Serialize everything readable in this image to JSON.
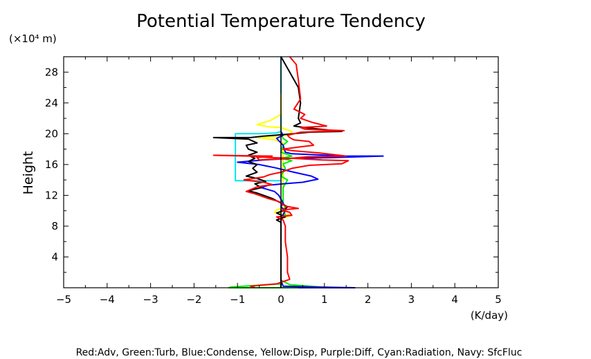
{
  "chart_data": {
    "type": "line",
    "title": "Potential Temperature Tendency",
    "ylabel": "Height",
    "y_unit_label": "(×10⁴ m)",
    "x_unit_label": "(K/day)",
    "xlim": [
      -5,
      5
    ],
    "ylim": [
      0,
      30
    ],
    "x_ticks": [
      -5,
      -4,
      -3,
      -2,
      -1,
      0,
      1,
      2,
      3,
      4,
      5
    ],
    "x_tick_labels": [
      "−5",
      "−4",
      "−3",
      "−2",
      "−1",
      "0",
      "1",
      "2",
      "3",
      "4",
      "5"
    ],
    "y_ticks": [
      4,
      8,
      12,
      16,
      20,
      24,
      28
    ],
    "y_tick_labels": [
      "4",
      "8",
      "12",
      "16",
      "20",
      "24",
      "28"
    ],
    "grid": false,
    "legend_caption": "Red:Adv, Green:Turb, Blue:Condense, Yellow:Disp, Purple:Diff, Cyan:Radiation, Navy: SfcFluc",
    "series": [
      {
        "name": "Cyan",
        "color": "#00e5ee",
        "points": [
          [
            -1.05,
            13.9
          ],
          [
            -1.05,
            16
          ],
          [
            -1.05,
            18
          ],
          [
            -1.05,
            20
          ],
          [
            -0.5,
            20
          ],
          [
            -0.1,
            20.1
          ],
          [
            0,
            20.3
          ],
          [
            0,
            30
          ],
          [
            0,
            20.3
          ],
          [
            -0.1,
            20.1
          ],
          [
            -0.5,
            20
          ],
          [
            -1.05,
            20
          ],
          [
            -1.05,
            13.9
          ],
          [
            -0.7,
            13.9
          ],
          [
            -0.2,
            13.9
          ],
          [
            0,
            13.9
          ]
        ]
      },
      {
        "name": "Yellow",
        "color": "#ffff00",
        "points": [
          [
            0,
            25.2
          ],
          [
            0,
            22.5
          ],
          [
            -0.25,
            21.7
          ],
          [
            -0.55,
            21.2
          ],
          [
            -0.3,
            20.9
          ],
          [
            0,
            20.8
          ],
          [
            0.25,
            20.3
          ],
          [
            0.2,
            19.9
          ],
          [
            -0.05,
            19.7
          ],
          [
            -0.55,
            19.5
          ],
          [
            -0.15,
            19.2
          ],
          [
            0.05,
            18.8
          ],
          [
            0.05,
            17
          ],
          [
            0.05,
            14
          ],
          [
            0.05,
            11
          ],
          [
            0.1,
            10.5
          ],
          [
            -0.1,
            10.1
          ],
          [
            -0.15,
            9.8
          ],
          [
            0.05,
            9.6
          ],
          [
            0.25,
            9.4
          ],
          [
            0.05,
            9.1
          ],
          [
            0,
            8.7
          ],
          [
            0,
            4
          ],
          [
            0,
            0
          ]
        ]
      },
      {
        "name": "Green",
        "color": "#00ee00",
        "points": [
          [
            0,
            20
          ],
          [
            0.05,
            19.4
          ],
          [
            0.15,
            19
          ],
          [
            0.05,
            18.5
          ],
          [
            0,
            17.6
          ],
          [
            0.25,
            17.1
          ],
          [
            0,
            16.8
          ],
          [
            0.25,
            16.5
          ],
          [
            0.05,
            16.1
          ],
          [
            0.1,
            15.5
          ],
          [
            0,
            14.5
          ],
          [
            0.15,
            14
          ],
          [
            0.05,
            13
          ],
          [
            0.05,
            12
          ],
          [
            0.05,
            11
          ],
          [
            0.1,
            10.5
          ],
          [
            0.05,
            10
          ],
          [
            0.1,
            9.5
          ],
          [
            0,
            9
          ],
          [
            0,
            1
          ],
          [
            0.2,
            0.4
          ],
          [
            0.9,
            0.1
          ],
          [
            1,
            0
          ],
          [
            -1.2,
            0
          ],
          [
            -1.15,
            0.1
          ],
          [
            0,
            0.5
          ]
        ]
      },
      {
        "name": "Blue",
        "color": "#0000ff",
        "points": [
          [
            0,
            20.3
          ],
          [
            0.05,
            19.8
          ],
          [
            -0.1,
            19.4
          ],
          [
            0.05,
            18.5
          ],
          [
            0.1,
            17.6
          ],
          [
            0.25,
            17.4
          ],
          [
            1.5,
            17.1
          ],
          [
            2.35,
            17.1
          ],
          [
            1.2,
            16.9
          ],
          [
            0.25,
            16.8
          ],
          [
            -0.4,
            16.6
          ],
          [
            -1,
            16.3
          ],
          [
            -0.5,
            16
          ],
          [
            -0.15,
            15.6
          ],
          [
            0.3,
            15
          ],
          [
            0.7,
            14.5
          ],
          [
            0.85,
            14.1
          ],
          [
            0.5,
            13.7
          ],
          [
            0.05,
            13.5
          ],
          [
            -0.3,
            13.3
          ],
          [
            -0.45,
            13
          ],
          [
            -0.15,
            12.5
          ],
          [
            -0.05,
            12
          ],
          [
            0,
            11.5
          ],
          [
            0.05,
            11
          ],
          [
            0,
            10.5
          ],
          [
            0.1,
            10
          ],
          [
            0.05,
            9.5
          ],
          [
            0,
            9
          ],
          [
            0,
            1
          ],
          [
            0.05,
            0.2
          ],
          [
            0.8,
            0.1
          ],
          [
            1.7,
            0
          ],
          [
            0.4,
            0
          ]
        ]
      },
      {
        "name": "Black",
        "color": "#000000",
        "points": [
          [
            0,
            30
          ],
          [
            0.2,
            28
          ],
          [
            0.4,
            26
          ],
          [
            0.45,
            24
          ],
          [
            0.4,
            22
          ],
          [
            0.45,
            21.4
          ],
          [
            0.3,
            21
          ],
          [
            0.55,
            20.8
          ],
          [
            1.4,
            20.3
          ],
          [
            0.65,
            20.2
          ],
          [
            0.3,
            20
          ],
          [
            0.1,
            19.9
          ],
          [
            -0.4,
            19.7
          ],
          [
            -0.7,
            19.5
          ],
          [
            -1.55,
            19.5
          ],
          [
            -0.75,
            19.3
          ],
          [
            -0.55,
            18.8
          ],
          [
            -0.8,
            18.5
          ],
          [
            -0.75,
            18
          ],
          [
            -0.55,
            17.6
          ],
          [
            -0.75,
            17.2
          ],
          [
            -0.6,
            16.8
          ],
          [
            -0.75,
            16.4
          ],
          [
            -0.55,
            16
          ],
          [
            -0.65,
            15.5
          ],
          [
            -0.55,
            15
          ],
          [
            -0.8,
            14.5
          ],
          [
            -0.55,
            14.2
          ],
          [
            -0.35,
            13.8
          ],
          [
            -0.6,
            13.5
          ],
          [
            -0.45,
            13
          ],
          [
            -0.75,
            12.6
          ],
          [
            -0.55,
            12.3
          ],
          [
            -0.4,
            12
          ],
          [
            -0.2,
            11.6
          ],
          [
            0,
            11
          ],
          [
            0.15,
            10.5
          ],
          [
            0.05,
            10
          ],
          [
            -0.1,
            9.7
          ],
          [
            0.1,
            9.2
          ],
          [
            -0.1,
            8.8
          ],
          [
            0,
            8.5
          ],
          [
            0,
            4
          ],
          [
            0,
            1
          ],
          [
            0,
            0
          ]
        ]
      },
      {
        "name": "Red",
        "color": "#ff0000",
        "points": [
          [
            0.2,
            30
          ],
          [
            0.35,
            29
          ],
          [
            0.4,
            27
          ],
          [
            0.45,
            24.5
          ],
          [
            0.3,
            23.2
          ],
          [
            0.55,
            22.5
          ],
          [
            0.45,
            22
          ],
          [
            0.7,
            21.5
          ],
          [
            1.05,
            21
          ],
          [
            0.45,
            20.8
          ],
          [
            0.55,
            20.6
          ],
          [
            1.45,
            20.4
          ],
          [
            0.45,
            20.2
          ],
          [
            0.15,
            19.8
          ],
          [
            0.2,
            19.5
          ],
          [
            0.3,
            19.2
          ],
          [
            0.65,
            19
          ],
          [
            0.75,
            18.5
          ],
          [
            0.45,
            18.3
          ],
          [
            0.05,
            18
          ],
          [
            0.25,
            17.8
          ],
          [
            0.9,
            17.5
          ],
          [
            1.5,
            17.1
          ],
          [
            0.6,
            17
          ],
          [
            0.2,
            16.8
          ],
          [
            -0.5,
            16.6
          ],
          [
            -0.55,
            16.9
          ],
          [
            -0.2,
            17.1
          ],
          [
            -1.55,
            17.2
          ],
          [
            -0.75,
            17.1
          ],
          [
            -0.25,
            16.9
          ],
          [
            0.3,
            16.8
          ],
          [
            0.95,
            16.6
          ],
          [
            1.55,
            16.5
          ],
          [
            1.4,
            16.1
          ],
          [
            0.65,
            15.9
          ],
          [
            0.25,
            15.5
          ],
          [
            0,
            15
          ],
          [
            -0.25,
            14.7
          ],
          [
            -0.4,
            14.4
          ],
          [
            -0.85,
            14
          ],
          [
            -0.4,
            13.7
          ],
          [
            -0.2,
            13.4
          ],
          [
            -0.55,
            13.1
          ],
          [
            -0.8,
            12.5
          ],
          [
            -0.6,
            12.2
          ],
          [
            -0.3,
            11.6
          ],
          [
            -0.05,
            11.2
          ],
          [
            0.1,
            10.6
          ],
          [
            0.4,
            10.3
          ],
          [
            0,
            10.1
          ],
          [
            0.2,
            9.8
          ],
          [
            0.25,
            9.4
          ],
          [
            -0.1,
            9.2
          ],
          [
            0.05,
            8.8
          ],
          [
            0.1,
            8
          ],
          [
            0.1,
            6
          ],
          [
            0.15,
            4
          ],
          [
            0.15,
            2
          ],
          [
            0.2,
            1.1
          ],
          [
            -0.1,
            0.5
          ],
          [
            -0.55,
            0.3
          ],
          [
            -0.7,
            0.2
          ],
          [
            -0.6,
            0.1
          ]
        ]
      }
    ]
  }
}
